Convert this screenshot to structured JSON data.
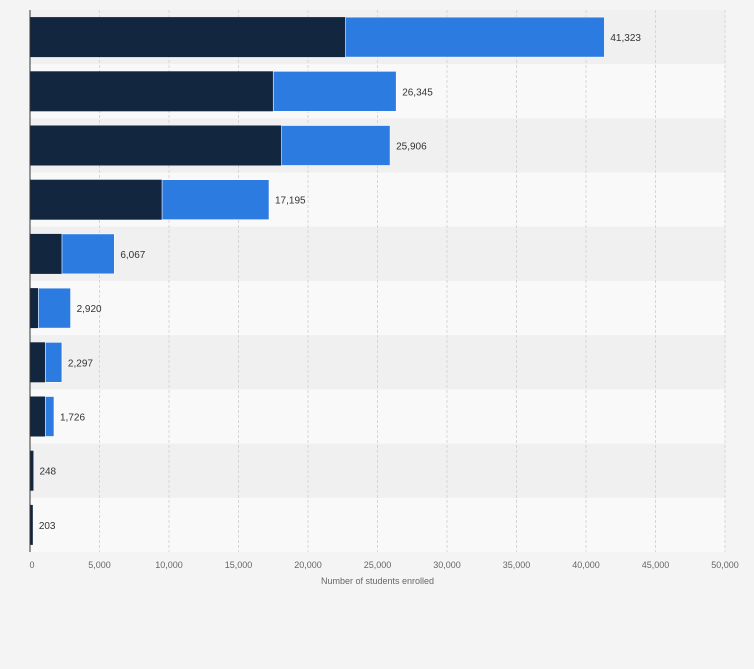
{
  "chart_data": {
    "type": "bar",
    "orientation": "horizontal",
    "stacked": true,
    "title": "",
    "xlabel": "Number of students enrolled",
    "ylabel": "",
    "xlim": [
      0,
      50000
    ],
    "xticks": [
      0,
      5000,
      10000,
      15000,
      20000,
      25000,
      30000,
      35000,
      40000,
      45000,
      50000
    ],
    "xtick_labels": [
      "0",
      "5,000",
      "10,000",
      "15,000",
      "20,000",
      "25,000",
      "30,000",
      "35,000",
      "40,000",
      "45,000",
      "50,000"
    ],
    "grid": true,
    "legend": "none",
    "colors": {
      "series_1": "#12263f",
      "series_2": "#2c7be0",
      "stripe": "#f0f0f0"
    },
    "series": [
      {
        "values": [
          22700,
          17500,
          18100,
          9500,
          2300,
          600,
          1100,
          1100,
          248,
          203
        ]
      },
      {
        "values": [
          18623,
          8845,
          7806,
          7695,
          3767,
          2320,
          1197,
          626,
          0,
          0
        ]
      }
    ],
    "totals": [
      41323,
      26345,
      25906,
      17195,
      6067,
      2920,
      2297,
      1726,
      248,
      203
    ],
    "data_labels": [
      "41,323",
      "26,345",
      "25,906",
      "17,195",
      "6,067",
      "2,920",
      "2,297",
      "1,726",
      "248",
      "203"
    ]
  }
}
